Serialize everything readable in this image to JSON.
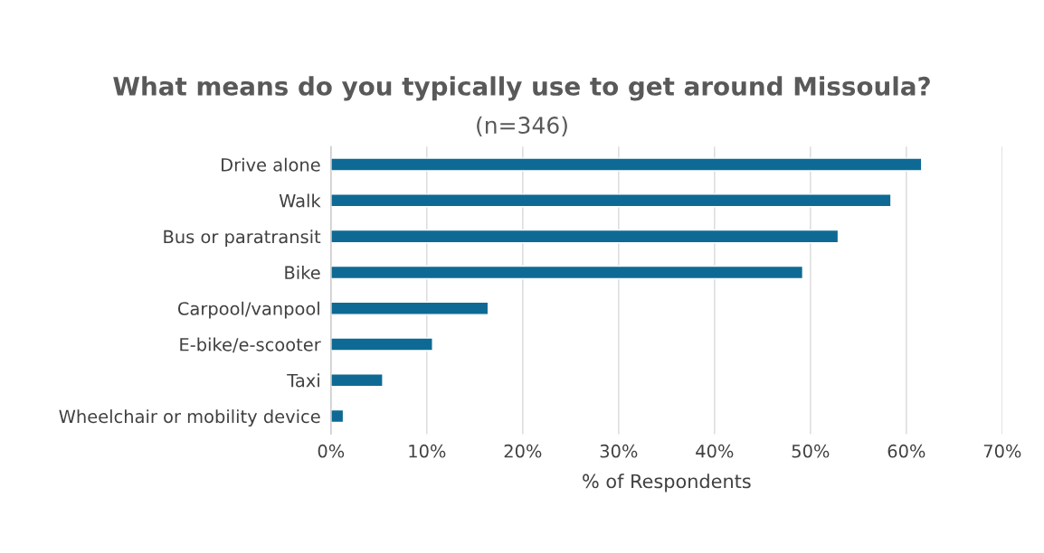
{
  "chart_data": {
    "type": "bar",
    "orientation": "horizontal",
    "title": "What means do you typically use to get around Missoula?",
    "subtitle": "(n=346)",
    "xlabel": "% of Respondents",
    "categories": [
      "Drive alone",
      "Walk",
      "Bus or paratransit",
      "Bike",
      "Carpool/vanpool",
      "E-bike/e-scooter",
      "Taxi",
      "Wheelchair or mobility device"
    ],
    "values": [
      61.6,
      58.4,
      52.9,
      49.2,
      16.4,
      10.6,
      5.4,
      1.3
    ],
    "color": "#0e6a94",
    "xlim": [
      0,
      70
    ],
    "xticks": [
      {
        "value": 0,
        "label": "0%"
      },
      {
        "value": 10,
        "label": "10%"
      },
      {
        "value": 20,
        "label": "20%"
      },
      {
        "value": 30,
        "label": "30%"
      },
      {
        "value": 40,
        "label": "40%"
      },
      {
        "value": 50,
        "label": "50%"
      },
      {
        "value": 60,
        "label": "60%"
      },
      {
        "value": 70,
        "label": "70%"
      }
    ],
    "grid": "x",
    "legend": false
  }
}
